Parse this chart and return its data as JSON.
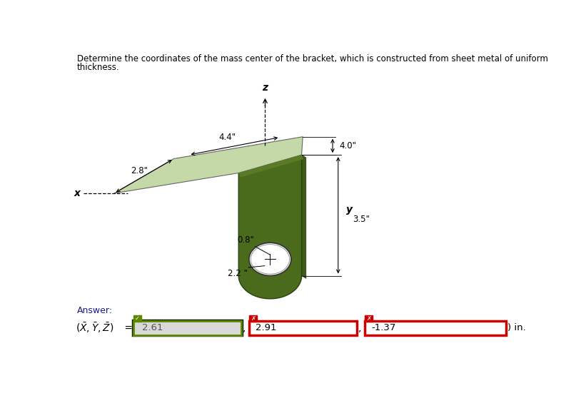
{
  "title_line1": "Determine the coordinates of the mass center of the bracket, which is constructed from sheet metal of uniform",
  "title_line2": "thickness.",
  "dim_44": "4.4\"",
  "dim_28": "2.8\"",
  "dim_40": "4.0\"",
  "dim_35": "3.5\"",
  "dim_08": "0.8\"",
  "dim_22": "2.2 \"",
  "axis_x": "x",
  "axis_z": "z",
  "axis_y": "y",
  "answer_label": "Answer:",
  "val1": "2.61",
  "val2": "2.91",
  "val3": "-1.37",
  "bg_color": "#ffffff",
  "bracket_top_fill": "#c5d9a8",
  "bracket_front_fill": "#4a6b1c",
  "bracket_side_fill": "#3d5a18",
  "bracket_top_edge": "#7a9a5a",
  "bracket_front_edge": "#2a4010"
}
